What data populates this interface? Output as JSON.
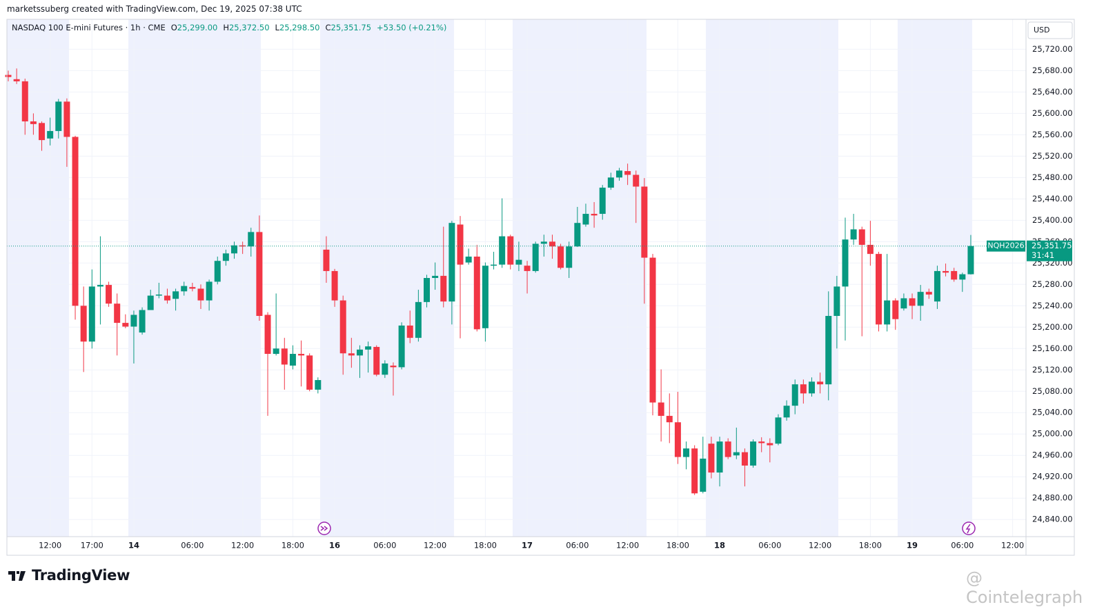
{
  "header": {
    "credit": "marketssuberg created with TradingView.com, Dec 19, 2025 07:38 UTC",
    "symbol": "NASDAQ 100 E-mini Futures · 1h · CME",
    "ohlc": [
      {
        "key": "O",
        "value": "25,299.00"
      },
      {
        "key": "H",
        "value": "25,372.50"
      },
      {
        "key": "L",
        "value": "25,298.50"
      },
      {
        "key": "C",
        "value": "25,351.75"
      }
    ],
    "change": "+53.50 (+0.21%)",
    "currency": "USD",
    "brand": "TradingView",
    "watermark": "@ Cointelegraph"
  },
  "chart_data": {
    "type": "candlestick",
    "up_color": "#089981",
    "down_color": "#f23645",
    "grid": true,
    "symbol_tag": "NQH2026",
    "last_price_label": "25,351.75",
    "countdown": "31:41",
    "categories": [
      null,
      null,
      null,
      null,
      null,
      "12:00",
      null,
      null,
      null,
      null,
      "17:00",
      null,
      null,
      null,
      null,
      "14",
      null,
      null,
      null,
      null,
      null,
      null,
      "06:00",
      null,
      null,
      null,
      null,
      null,
      "12:00",
      null,
      null,
      null,
      null,
      null,
      "18:00",
      null,
      null,
      null,
      null,
      "16",
      null,
      null,
      null,
      null,
      null,
      "06:00",
      null,
      null,
      null,
      null,
      null,
      "12:00",
      null,
      null,
      null,
      null,
      null,
      "18:00",
      null,
      null,
      null,
      null,
      "17",
      null,
      null,
      null,
      null,
      null,
      "06:00",
      null,
      null,
      null,
      null,
      null,
      "12:00",
      null,
      null,
      null,
      null,
      null,
      "18:00",
      null,
      null,
      null,
      null,
      "18",
      null,
      null,
      null,
      null,
      null,
      "06:00",
      null,
      null,
      null,
      null,
      null,
      "12:00",
      null,
      null,
      null,
      null,
      null,
      "18:00",
      null,
      null,
      null,
      null,
      "19",
      null,
      null,
      null,
      null,
      null,
      "06:00",
      null,
      null,
      null,
      null,
      null,
      "12:00"
    ],
    "open": [
      25672,
      25664,
      25660,
      25585,
      25582,
      25553,
      25567,
      25622,
      25556,
      25240,
      25173,
      25276,
      25279,
      25244,
      25208,
      25201,
      25190,
      25232,
      25259,
      25259,
      25253,
      25267,
      25275,
      25272,
      25250,
      25285,
      25324,
      25338,
      25353,
      25351,
      25378,
      25223,
      25150,
      25160,
      25128,
      25150,
      25147,
      25083,
      25345,
      25305,
      25250,
      25151,
      25147,
      25158,
      25163,
      25111,
      25128,
      25125,
      25203,
      25180,
      25247,
      25292,
      25296,
      25248,
      25392,
      25321,
      25332,
      25198,
      25315,
      25317,
      25370,
      25317,
      25315,
      25305,
      25356,
      25360,
      25351,
      25311,
      25351,
      25392,
      25412,
      25412,
      25461,
      25480,
      25492,
      25485,
      25463,
      25330,
      25059,
      25034,
      25022,
      24957,
      24973,
      24892,
      24982,
      24928,
      24986,
      24960,
      24966,
      24941,
      24986,
      24983,
      24982,
      25031,
      25053,
      25093,
      25076,
      25098,
      25093,
      25221,
      25276,
      25364,
      25383,
      25354,
      25337,
      25205,
      25250,
      25235,
      25254,
      25240,
      25266,
      25248,
      25305,
      25305,
      25289,
      25299,
      null,
      null,
      null,
      null,
      null
    ],
    "high": [
      25680,
      25684,
      25665,
      25600,
      25585,
      25592,
      25627,
      25628,
      25558,
      25276,
      25308,
      25370,
      25285,
      25263,
      25224,
      25231,
      25237,
      25270,
      25283,
      25272,
      25272,
      25285,
      25283,
      25280,
      25289,
      25332,
      25345,
      25360,
      25360,
      25386,
      25409,
      25228,
      25263,
      25180,
      25166,
      25175,
      25151,
      25106,
      25370,
      25309,
      25259,
      25180,
      25166,
      25173,
      25166,
      25138,
      25134,
      25209,
      25231,
      25270,
      25298,
      25321,
      25388,
      25399,
      25408,
      25347,
      25354,
      25321,
      25341,
      25441,
      25373,
      25360,
      25324,
      25360,
      25373,
      25373,
      25356,
      25360,
      25425,
      25431,
      25434,
      25466,
      25489,
      25498,
      25506,
      25493,
      25479,
      25337,
      25121,
      25076,
      25079,
      24986,
      24979,
      24995,
      24995,
      24995,
      24992,
      25012,
      24973,
      24990,
      24994,
      24992,
      25037,
      25063,
      25102,
      25102,
      25106,
      25115,
      25267,
      25296,
      25405,
      25412,
      25388,
      25399,
      25341,
      25337,
      25254,
      25263,
      25263,
      25279,
      25272,
      25315,
      25319,
      25311,
      25302,
      25372.5,
      null,
      null,
      null,
      null,
      null
    ],
    "low": [
      25660,
      25655,
      25560,
      25560,
      25530,
      25540,
      25553,
      25500,
      25214,
      25116,
      25160,
      25205,
      25238,
      25147,
      25198,
      25132,
      25186,
      25234,
      25254,
      25244,
      25231,
      25259,
      25267,
      25234,
      25231,
      25280,
      25315,
      25328,
      25337,
      25332,
      25212,
      25034,
      25147,
      25083,
      25121,
      25089,
      25080,
      25076,
      25283,
      25238,
      25111,
      25124,
      25105,
      25115,
      25108,
      25105,
      25072,
      25121,
      25170,
      25173,
      25237,
      25270,
      25237,
      25205,
      25179,
      25317,
      25192,
      25173,
      25308,
      25311,
      25308,
      25305,
      25263,
      25302,
      25332,
      25328,
      25308,
      25292,
      25350,
      25388,
      25386,
      25401,
      25457,
      25474,
      25466,
      25395,
      25244,
      25035,
      24986,
      24983,
      24944,
      24934,
      24886,
      24889,
      24917,
      24902,
      24953,
      24953,
      24902,
      24937,
      24966,
      24947,
      24979,
      25025,
      25037,
      25057,
      25070,
      25076,
      25063,
      25160,
      25175,
      25354,
      25183,
      25315,
      25192,
      25192,
      25195,
      25231,
      25215,
      25212,
      25253,
      25234,
      25295,
      25285,
      25266,
      25298.5,
      null,
      null,
      null,
      null,
      null
    ],
    "close": [
      25668,
      25660,
      25585,
      25580,
      25550,
      25567,
      25622,
      25556,
      25240,
      25173,
      25276,
      25279,
      25244,
      25208,
      25201,
      25223,
      25232,
      25259,
      25261,
      25250,
      25267,
      25277,
      25272,
      25250,
      25285,
      25324,
      25338,
      25353,
      25351,
      25378,
      25221,
      25150,
      25160,
      25130,
      25150,
      25147,
      25083,
      25101,
      25305,
      25250,
      25151,
      25147,
      25158,
      25164,
      25111,
      25132,
      25125,
      25203,
      25180,
      25247,
      25292,
      25296,
      25248,
      25395,
      25317,
      25332,
      25196,
      25315,
      25317,
      25370,
      25317,
      25326,
      25305,
      25356,
      25360,
      25351,
      25311,
      25351,
      25395,
      25412,
      25409,
      25461,
      25480,
      25493,
      25485,
      25463,
      25330,
      25059,
      25034,
      25022,
      24957,
      24973,
      24889,
      24954,
      24928,
      24986,
      24957,
      24966,
      24941,
      24986,
      24983,
      24979,
      25031,
      25053,
      25093,
      25076,
      25098,
      25093,
      25221,
      25276,
      25364,
      25383,
      25354,
      25337,
      25205,
      25250,
      25215,
      25254,
      25240,
      25266,
      25261,
      25305,
      25302,
      25289,
      25299,
      25351.75,
      null,
      null,
      null,
      null,
      null
    ],
    "ylim": [
      24808,
      25776
    ],
    "yticks": [
      {
        "value": 24840,
        "label": "24,840.00"
      },
      {
        "value": 24880,
        "label": "24,880.00"
      },
      {
        "value": 24920,
        "label": "24,920.00"
      },
      {
        "value": 24960,
        "label": "24,960.00"
      },
      {
        "value": 25000,
        "label": "25,000.00"
      },
      {
        "value": 25040,
        "label": "25,040.00"
      },
      {
        "value": 25080,
        "label": "25,080.00"
      },
      {
        "value": 25120,
        "label": "25,120.00"
      },
      {
        "value": 25160,
        "label": "25,160.00"
      },
      {
        "value": 25200,
        "label": "25,200.00"
      },
      {
        "value": 25240,
        "label": "25,240.00"
      },
      {
        "value": 25280,
        "label": "25,280.00"
      },
      {
        "value": 25320,
        "label": "25,320.00"
      },
      {
        "value": 25360,
        "label": "25,360.00"
      },
      {
        "value": 25400,
        "label": "25,400.00"
      },
      {
        "value": 25440,
        "label": "25,440.00"
      },
      {
        "value": 25480,
        "label": "25,480.00"
      },
      {
        "value": 25520,
        "label": "25,520.00"
      },
      {
        "value": 25560,
        "label": "25,560.00"
      },
      {
        "value": 25600,
        "label": "25,600.00"
      },
      {
        "value": 25640,
        "label": "25,640.00"
      },
      {
        "value": 25680,
        "label": "25,680.00"
      },
      {
        "value": 25720,
        "label": "25,720.00"
      }
    ]
  }
}
